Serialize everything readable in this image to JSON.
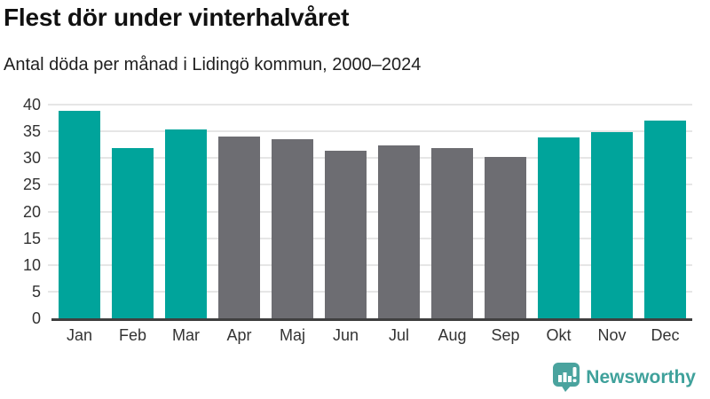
{
  "header": {
    "title": "Flest dör under vinterhalvåret",
    "subtitle": "Antal döda per månad i Lidingö kommun, 2000–2024"
  },
  "chart_data": {
    "type": "bar",
    "title": "Flest dör under vinterhalvåret",
    "subtitle": "Antal döda per månad i Lidingö kommun, 2000–2024",
    "categories": [
      "Jan",
      "Feb",
      "Mar",
      "Apr",
      "Maj",
      "Jun",
      "Jul",
      "Aug",
      "Sep",
      "Okt",
      "Nov",
      "Dec"
    ],
    "values": [
      38.9,
      31.8,
      35.3,
      34.0,
      33.5,
      31.4,
      32.3,
      31.8,
      30.2,
      33.8,
      34.8,
      37.0
    ],
    "bar_colors": [
      "#00a49b",
      "#00a49b",
      "#00a49b",
      "#6d6d72",
      "#6d6d72",
      "#6d6d72",
      "#6d6d72",
      "#6d6d72",
      "#6d6d72",
      "#00a49b",
      "#00a49b",
      "#00a49b"
    ],
    "highlight_color": "#00a49b",
    "muted_color": "#6d6d72",
    "xlabel": "",
    "ylabel": "",
    "ylim": [
      0,
      40
    ],
    "yticks": [
      0,
      5,
      10,
      15,
      20,
      25,
      30,
      35,
      40
    ],
    "grid": true,
    "legend": "none",
    "axis_color": "#3f3f3f",
    "gridline_color": "#e6e6e6"
  },
  "branding": {
    "wordmark": "Newsworthy",
    "icon": "newsworthy-bubble-chart-icon",
    "icon_color": "#4aa39e",
    "text_color": "#3fa19b"
  }
}
